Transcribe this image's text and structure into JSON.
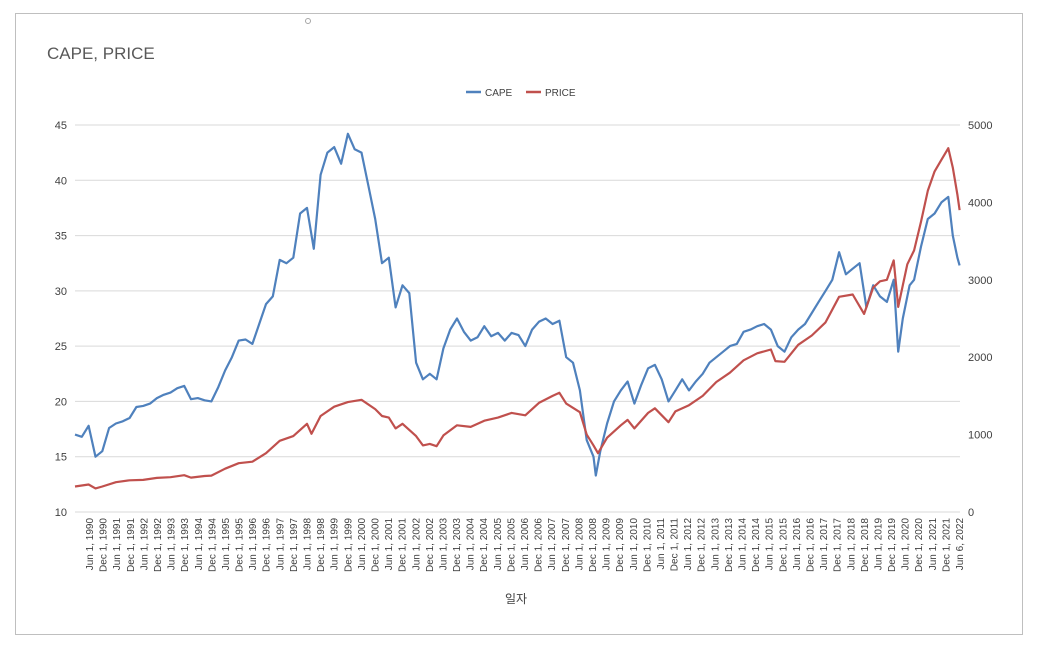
{
  "chart_data": {
    "type": "line",
    "title": "CAPE, PRICE",
    "xlabel": "일자",
    "legend_position": "top",
    "grid": true,
    "y_left": {
      "min": 10,
      "max": 45,
      "ticks": [
        "10",
        "15",
        "20",
        "25",
        "30",
        "35",
        "40",
        "45"
      ]
    },
    "y_right": {
      "min": 0,
      "max": 5000,
      "ticks": [
        "0",
        "1000",
        "2000",
        "3000",
        "4000",
        "5000"
      ]
    },
    "x_tick_labels": [
      "Jun 1, 1990",
      "Dec 1, 1990",
      "Jun 1, 1991",
      "Dec 1, 1991",
      "Jun 1, 1992",
      "Dec 1, 1992",
      "Jun 1, 1993",
      "Dec 1, 1993",
      "Jun 1, 1994",
      "Dec 1, 1994",
      "Jun 1, 1995",
      "Dec 1, 1995",
      "Jun 1, 1996",
      "Dec 1, 1996",
      "Jun 1, 1997",
      "Dec 1, 1997",
      "Jun 1, 1998",
      "Dec 1, 1998",
      "Jun 1, 1999",
      "Dec 1, 1999",
      "Jun 1, 2000",
      "Dec 1, 2000",
      "Jun 1, 2001",
      "Dec 1, 2001",
      "Jun 1, 2002",
      "Dec 1, 2002",
      "Jun 1, 2003",
      "Dec 1, 2003",
      "Jun 1, 2004",
      "Dec 1, 2004",
      "Jun 1, 2005",
      "Dec 1, 2005",
      "Jun 1, 2006",
      "Dec 1, 2006",
      "Jun 1, 2007",
      "Dec 1, 2007",
      "Jun 1, 2008",
      "Dec 1, 2008",
      "Jun 1, 2009",
      "Dec 1, 2009",
      "Jun 1, 2010",
      "Dec 1, 2010",
      "Jun 1, 2011",
      "Dec 1, 2011",
      "Jun 1, 2012",
      "Dec 1, 2012",
      "Jun 1, 2013",
      "Dec 1, 2013",
      "Jun 1, 2014",
      "Dec 1, 2014",
      "Jun 1, 2015",
      "Dec 1, 2015",
      "Jun 1, 2016",
      "Dec 1, 2016",
      "Jun 1, 2017",
      "Dec 1, 2017",
      "Jun 1, 2018",
      "Dec 1, 2018",
      "Jun 1, 2019",
      "Dec 1, 2019",
      "Jun 1, 2020",
      "Dec 1, 2020",
      "Jun 1, 2021",
      "Dec 1, 2021",
      "Jun 6, 2022"
    ],
    "series": [
      {
        "name": "CAPE",
        "axis": "left",
        "color": "#4f81bd",
        "points": [
          [
            "1990-01",
            17.0
          ],
          [
            "1990-04",
            16.8
          ],
          [
            "1990-07",
            17.8
          ],
          [
            "1990-10",
            15.0
          ],
          [
            "1991-01",
            15.5
          ],
          [
            "1991-04",
            17.6
          ],
          [
            "1991-07",
            18.0
          ],
          [
            "1991-10",
            18.2
          ],
          [
            "1992-01",
            18.5
          ],
          [
            "1992-04",
            19.5
          ],
          [
            "1992-07",
            19.6
          ],
          [
            "1992-10",
            19.8
          ],
          [
            "1993-01",
            20.3
          ],
          [
            "1993-04",
            20.6
          ],
          [
            "1993-07",
            20.8
          ],
          [
            "1993-10",
            21.2
          ],
          [
            "1994-01",
            21.4
          ],
          [
            "1994-04",
            20.2
          ],
          [
            "1994-07",
            20.3
          ],
          [
            "1994-10",
            20.1
          ],
          [
            "1995-01",
            20.0
          ],
          [
            "1995-04",
            21.3
          ],
          [
            "1995-07",
            22.8
          ],
          [
            "1995-10",
            24.0
          ],
          [
            "1996-01",
            25.5
          ],
          [
            "1996-04",
            25.6
          ],
          [
            "1996-07",
            25.2
          ],
          [
            "1996-10",
            27.0
          ],
          [
            "1997-01",
            28.8
          ],
          [
            "1997-04",
            29.5
          ],
          [
            "1997-07",
            32.8
          ],
          [
            "1997-10",
            32.5
          ],
          [
            "1998-01",
            33.0
          ],
          [
            "1998-04",
            37.0
          ],
          [
            "1998-07",
            37.5
          ],
          [
            "1998-10",
            33.8
          ],
          [
            "1999-01",
            40.5
          ],
          [
            "1999-04",
            42.5
          ],
          [
            "1999-07",
            43.0
          ],
          [
            "1999-10",
            41.5
          ],
          [
            "2000-01",
            44.2
          ],
          [
            "2000-04",
            42.8
          ],
          [
            "2000-07",
            42.5
          ],
          [
            "2000-10",
            39.5
          ],
          [
            "2001-01",
            36.5
          ],
          [
            "2001-04",
            32.5
          ],
          [
            "2001-07",
            33.0
          ],
          [
            "2001-10",
            28.5
          ],
          [
            "2002-01",
            30.5
          ],
          [
            "2002-04",
            29.8
          ],
          [
            "2002-07",
            23.5
          ],
          [
            "2002-10",
            22.0
          ],
          [
            "2003-01",
            22.5
          ],
          [
            "2003-04",
            22.0
          ],
          [
            "2003-07",
            24.8
          ],
          [
            "2003-10",
            26.5
          ],
          [
            "2004-01",
            27.5
          ],
          [
            "2004-04",
            26.3
          ],
          [
            "2004-07",
            25.5
          ],
          [
            "2004-10",
            25.8
          ],
          [
            "2005-01",
            26.8
          ],
          [
            "2005-04",
            25.9
          ],
          [
            "2005-07",
            26.2
          ],
          [
            "2005-10",
            25.5
          ],
          [
            "2006-01",
            26.2
          ],
          [
            "2006-04",
            26.0
          ],
          [
            "2006-07",
            25.0
          ],
          [
            "2006-10",
            26.5
          ],
          [
            "2007-01",
            27.2
          ],
          [
            "2007-04",
            27.5
          ],
          [
            "2007-07",
            27.0
          ],
          [
            "2007-10",
            27.3
          ],
          [
            "2008-01",
            24.0
          ],
          [
            "2008-04",
            23.5
          ],
          [
            "2008-07",
            21.0
          ],
          [
            "2008-10",
            16.5
          ],
          [
            "2009-01",
            15.0
          ],
          [
            "2009-02",
            13.3
          ],
          [
            "2009-04",
            15.5
          ],
          [
            "2009-07",
            18.0
          ],
          [
            "2009-10",
            20.0
          ],
          [
            "2010-01",
            21.0
          ],
          [
            "2010-04",
            21.8
          ],
          [
            "2010-07",
            19.8
          ],
          [
            "2010-10",
            21.5
          ],
          [
            "2011-01",
            23.0
          ],
          [
            "2011-04",
            23.3
          ],
          [
            "2011-07",
            22.0
          ],
          [
            "2011-10",
            20.0
          ],
          [
            "2012-01",
            21.0
          ],
          [
            "2012-04",
            22.0
          ],
          [
            "2012-07",
            21.0
          ],
          [
            "2012-10",
            21.8
          ],
          [
            "2013-01",
            22.5
          ],
          [
            "2013-04",
            23.5
          ],
          [
            "2013-07",
            24.0
          ],
          [
            "2013-10",
            24.5
          ],
          [
            "2014-01",
            25.0
          ],
          [
            "2014-04",
            25.2
          ],
          [
            "2014-07",
            26.3
          ],
          [
            "2014-10",
            26.5
          ],
          [
            "2015-01",
            26.8
          ],
          [
            "2015-04",
            27.0
          ],
          [
            "2015-07",
            26.5
          ],
          [
            "2015-10",
            25.0
          ],
          [
            "2016-01",
            24.5
          ],
          [
            "2016-04",
            25.8
          ],
          [
            "2016-07",
            26.5
          ],
          [
            "2016-10",
            27.0
          ],
          [
            "2017-01",
            28.0
          ],
          [
            "2017-04",
            29.0
          ],
          [
            "2017-07",
            30.0
          ],
          [
            "2017-10",
            31.0
          ],
          [
            "2018-01",
            33.5
          ],
          [
            "2018-04",
            31.5
          ],
          [
            "2018-07",
            32.0
          ],
          [
            "2018-10",
            32.5
          ],
          [
            "2019-01",
            28.5
          ],
          [
            "2019-04",
            30.5
          ],
          [
            "2019-07",
            29.5
          ],
          [
            "2019-10",
            29.0
          ],
          [
            "2020-01",
            31.0
          ],
          [
            "2020-03",
            24.5
          ],
          [
            "2020-05",
            27.5
          ],
          [
            "2020-08",
            30.5
          ],
          [
            "2020-10",
            31.0
          ],
          [
            "2021-01",
            34.0
          ],
          [
            "2021-04",
            36.5
          ],
          [
            "2021-07",
            37.0
          ],
          [
            "2021-10",
            38.0
          ],
          [
            "2022-01",
            38.5
          ],
          [
            "2022-03",
            35.0
          ],
          [
            "2022-05",
            33.0
          ],
          [
            "2022-06",
            32.3
          ]
        ]
      },
      {
        "name": "PRICE",
        "axis": "right",
        "color": "#c0504d",
        "points": [
          [
            "1990-01",
            330
          ],
          [
            "1990-07",
            355
          ],
          [
            "1990-10",
            305
          ],
          [
            "1991-01",
            330
          ],
          [
            "1991-07",
            385
          ],
          [
            "1992-01",
            410
          ],
          [
            "1992-07",
            415
          ],
          [
            "1993-01",
            440
          ],
          [
            "1993-07",
            450
          ],
          [
            "1994-01",
            475
          ],
          [
            "1994-04",
            445
          ],
          [
            "1994-10",
            465
          ],
          [
            "1995-01",
            470
          ],
          [
            "1995-07",
            560
          ],
          [
            "1996-01",
            630
          ],
          [
            "1996-07",
            650
          ],
          [
            "1997-01",
            760
          ],
          [
            "1997-07",
            920
          ],
          [
            "1998-01",
            980
          ],
          [
            "1998-07",
            1140
          ],
          [
            "1998-09",
            1010
          ],
          [
            "1999-01",
            1240
          ],
          [
            "1999-07",
            1360
          ],
          [
            "2000-01",
            1420
          ],
          [
            "2000-07",
            1450
          ],
          [
            "2001-01",
            1330
          ],
          [
            "2001-04",
            1240
          ],
          [
            "2001-07",
            1220
          ],
          [
            "2001-10",
            1080
          ],
          [
            "2002-01",
            1140
          ],
          [
            "2002-07",
            980
          ],
          [
            "2002-10",
            860
          ],
          [
            "2003-01",
            880
          ],
          [
            "2003-04",
            850
          ],
          [
            "2003-07",
            990
          ],
          [
            "2004-01",
            1120
          ],
          [
            "2004-07",
            1100
          ],
          [
            "2005-01",
            1180
          ],
          [
            "2005-07",
            1220
          ],
          [
            "2006-01",
            1280
          ],
          [
            "2006-07",
            1250
          ],
          [
            "2007-01",
            1410
          ],
          [
            "2007-07",
            1500
          ],
          [
            "2007-10",
            1540
          ],
          [
            "2008-01",
            1400
          ],
          [
            "2008-07",
            1290
          ],
          [
            "2008-10",
            1000
          ],
          [
            "2009-01",
            860
          ],
          [
            "2009-03",
            760
          ],
          [
            "2009-07",
            960
          ],
          [
            "2010-01",
            1120
          ],
          [
            "2010-04",
            1190
          ],
          [
            "2010-07",
            1080
          ],
          [
            "2011-01",
            1280
          ],
          [
            "2011-04",
            1340
          ],
          [
            "2011-10",
            1160
          ],
          [
            "2012-01",
            1300
          ],
          [
            "2012-07",
            1380
          ],
          [
            "2013-01",
            1500
          ],
          [
            "2013-07",
            1680
          ],
          [
            "2014-01",
            1800
          ],
          [
            "2014-07",
            1960
          ],
          [
            "2015-01",
            2050
          ],
          [
            "2015-07",
            2100
          ],
          [
            "2015-09",
            1950
          ],
          [
            "2016-01",
            1940
          ],
          [
            "2016-07",
            2160
          ],
          [
            "2017-01",
            2280
          ],
          [
            "2017-07",
            2450
          ],
          [
            "2018-01",
            2780
          ],
          [
            "2018-07",
            2810
          ],
          [
            "2018-12",
            2560
          ],
          [
            "2019-04",
            2900
          ],
          [
            "2019-07",
            2980
          ],
          [
            "2019-10",
            3000
          ],
          [
            "2020-01",
            3250
          ],
          [
            "2020-03",
            2650
          ],
          [
            "2020-07",
            3200
          ],
          [
            "2020-10",
            3380
          ],
          [
            "2021-01",
            3750
          ],
          [
            "2021-04",
            4150
          ],
          [
            "2021-07",
            4400
          ],
          [
            "2021-10",
            4550
          ],
          [
            "2022-01",
            4700
          ],
          [
            "2022-03",
            4450
          ],
          [
            "2022-05",
            4100
          ],
          [
            "2022-06",
            3900
          ]
        ]
      }
    ]
  }
}
